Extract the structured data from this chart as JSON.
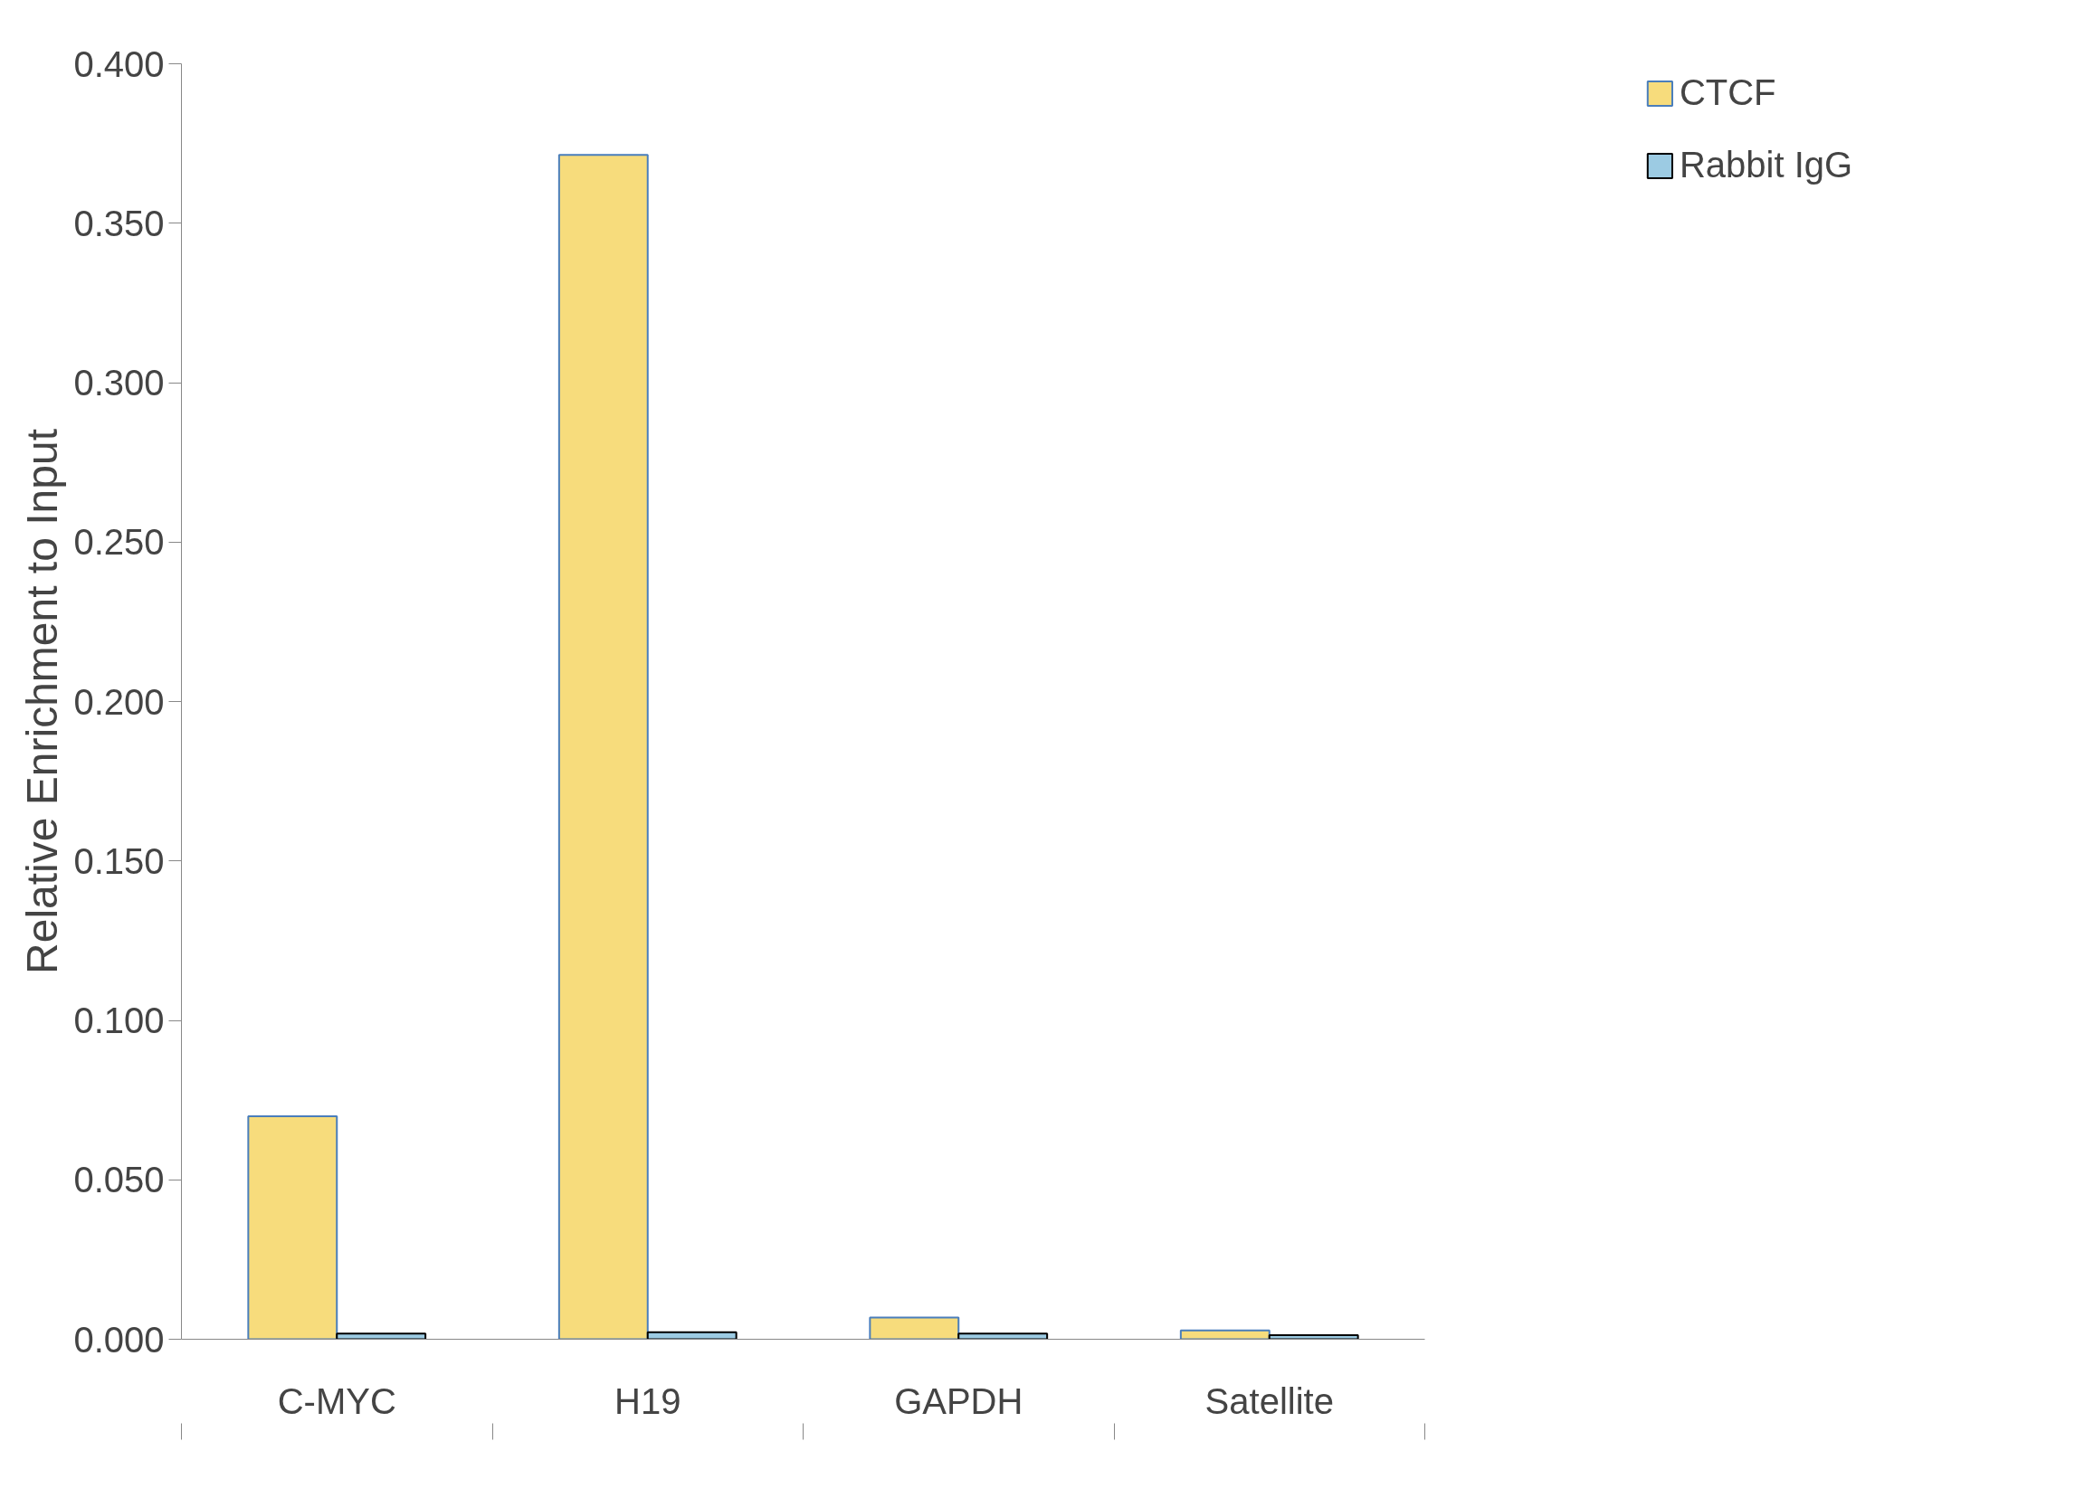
{
  "chart_data": {
    "type": "bar",
    "ylabel": "Relative Enrichment to Input",
    "categories": [
      "C-MYC",
      "H19",
      "GAPDH",
      "Satellite"
    ],
    "series": [
      {
        "name": "CTCF",
        "color": "#f7dc7c",
        "values": [
          0.0699,
          0.3714,
          0.0068,
          0.0028
        ]
      },
      {
        "name": "Rabbit IgG",
        "color": "#9ccbe3",
        "values": [
          0.0018,
          0.0022,
          0.0018,
          0.0013
        ]
      }
    ],
    "ylim": [
      0,
      0.4
    ],
    "yticks": [
      {
        "value": 0,
        "label": "0.000"
      },
      {
        "value": 0.05,
        "label": "0.050"
      },
      {
        "value": 0.1,
        "label": "0.100"
      },
      {
        "value": 0.15,
        "label": "0.150"
      },
      {
        "value": 0.2,
        "label": "0.200"
      },
      {
        "value": 0.25,
        "label": "0.250"
      },
      {
        "value": 0.3,
        "label": "0.300"
      },
      {
        "value": 0.35,
        "label": "0.350"
      },
      {
        "value": 0.4,
        "label": "0.400"
      }
    ],
    "grid": false,
    "legend": "top right"
  }
}
